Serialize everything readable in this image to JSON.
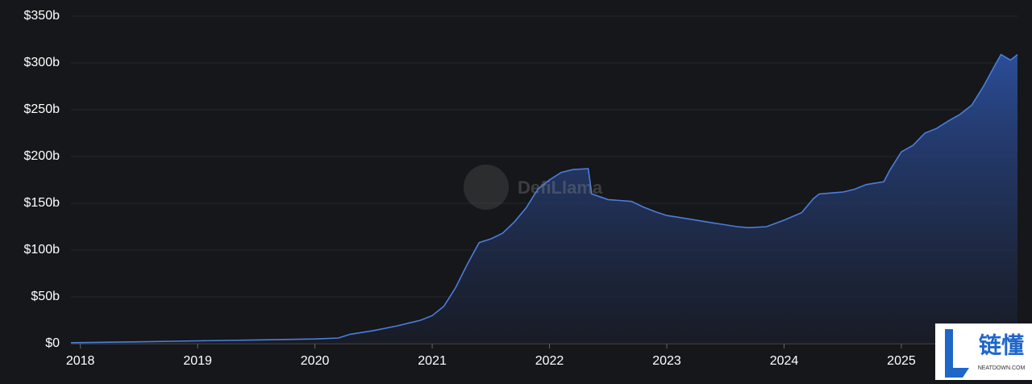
{
  "chart_data": {
    "type": "area",
    "x": [
      2017.92,
      2018.5,
      2019.0,
      2019.5,
      2020.0,
      2020.2,
      2020.3,
      2020.5,
      2020.7,
      2020.9,
      2021.0,
      2021.1,
      2021.2,
      2021.3,
      2021.4,
      2021.5,
      2021.6,
      2021.7,
      2021.8,
      2021.9,
      2022.0,
      2022.1,
      2022.2,
      2022.33,
      2022.36,
      2022.5,
      2022.7,
      2022.8,
      2022.9,
      2023.0,
      2023.2,
      2023.4,
      2023.6,
      2023.7,
      2023.85,
      2024.0,
      2024.15,
      2024.25,
      2024.3,
      2024.5,
      2024.6,
      2024.7,
      2024.85,
      2024.9,
      2025.0,
      2025.1,
      2025.2,
      2025.3,
      2025.4,
      2025.5,
      2025.6,
      2025.7,
      2025.8,
      2025.85,
      2025.93,
      2025.99
    ],
    "values": [
      1,
      2,
      3,
      4,
      5,
      6,
      10,
      14,
      19,
      25,
      30,
      40,
      60,
      85,
      108,
      112,
      118,
      130,
      145,
      165,
      175,
      183,
      186,
      187,
      160,
      154,
      152,
      146,
      141,
      137,
      133,
      129,
      125,
      124,
      125,
      132,
      140,
      155,
      160,
      162,
      165,
      170,
      173,
      185,
      205,
      212,
      225,
      230,
      238,
      245,
      255,
      275,
      298,
      309,
      303,
      309
    ],
    "color": "#4a7ddb",
    "xlim": [
      2017.92,
      2025.99
    ],
    "xticks": [
      2018,
      2019,
      2020,
      2021,
      2022,
      2023,
      2024,
      2025
    ],
    "ylim": [
      0,
      350
    ],
    "yticks": [
      {
        "value": 0,
        "label": "$0"
      },
      {
        "value": 50,
        "label": "$50b"
      },
      {
        "value": 100,
        "label": "$100b"
      },
      {
        "value": 150,
        "label": "$150b"
      },
      {
        "value": 200,
        "label": "$200b"
      },
      {
        "value": 250,
        "label": "$250b"
      },
      {
        "value": 300,
        "label": "$300b"
      },
      {
        "value": 350,
        "label": "$350b"
      }
    ],
    "grid": true,
    "watermark": "DefiLlama"
  },
  "logo": {
    "title": "链懂",
    "subtitle": "NEATDOWN.COM"
  }
}
